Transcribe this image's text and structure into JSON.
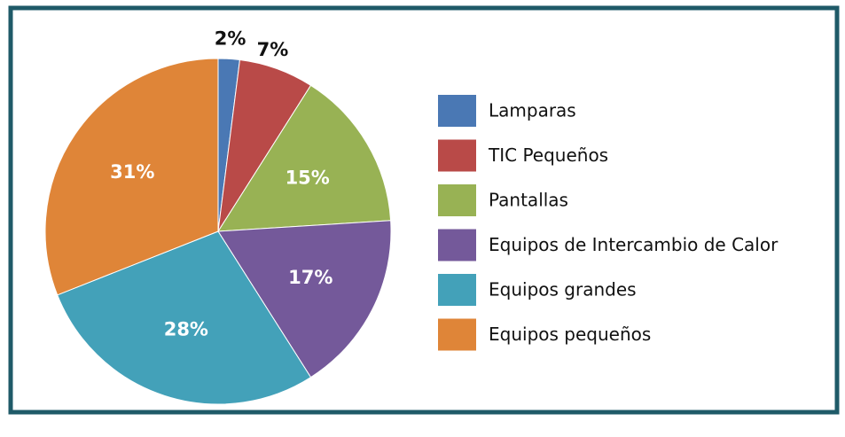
{
  "chart_data": {
    "type": "pie",
    "categories": [
      "Lamparas",
      "TIC Pequeños",
      "Pantallas",
      "Equipos de Intercambio de Calor",
      "Equipos grandes",
      "Equipos pequeños"
    ],
    "values": [
      2,
      7,
      15,
      17,
      28,
      31
    ],
    "value_labels": [
      "2%",
      "7%",
      "15%",
      "17%",
      "28%",
      "31%"
    ],
    "colors": [
      "#4a78b4",
      "#b94a48",
      "#98b254",
      "#74599a",
      "#43a1b9",
      "#df8538"
    ],
    "legend": "right"
  }
}
